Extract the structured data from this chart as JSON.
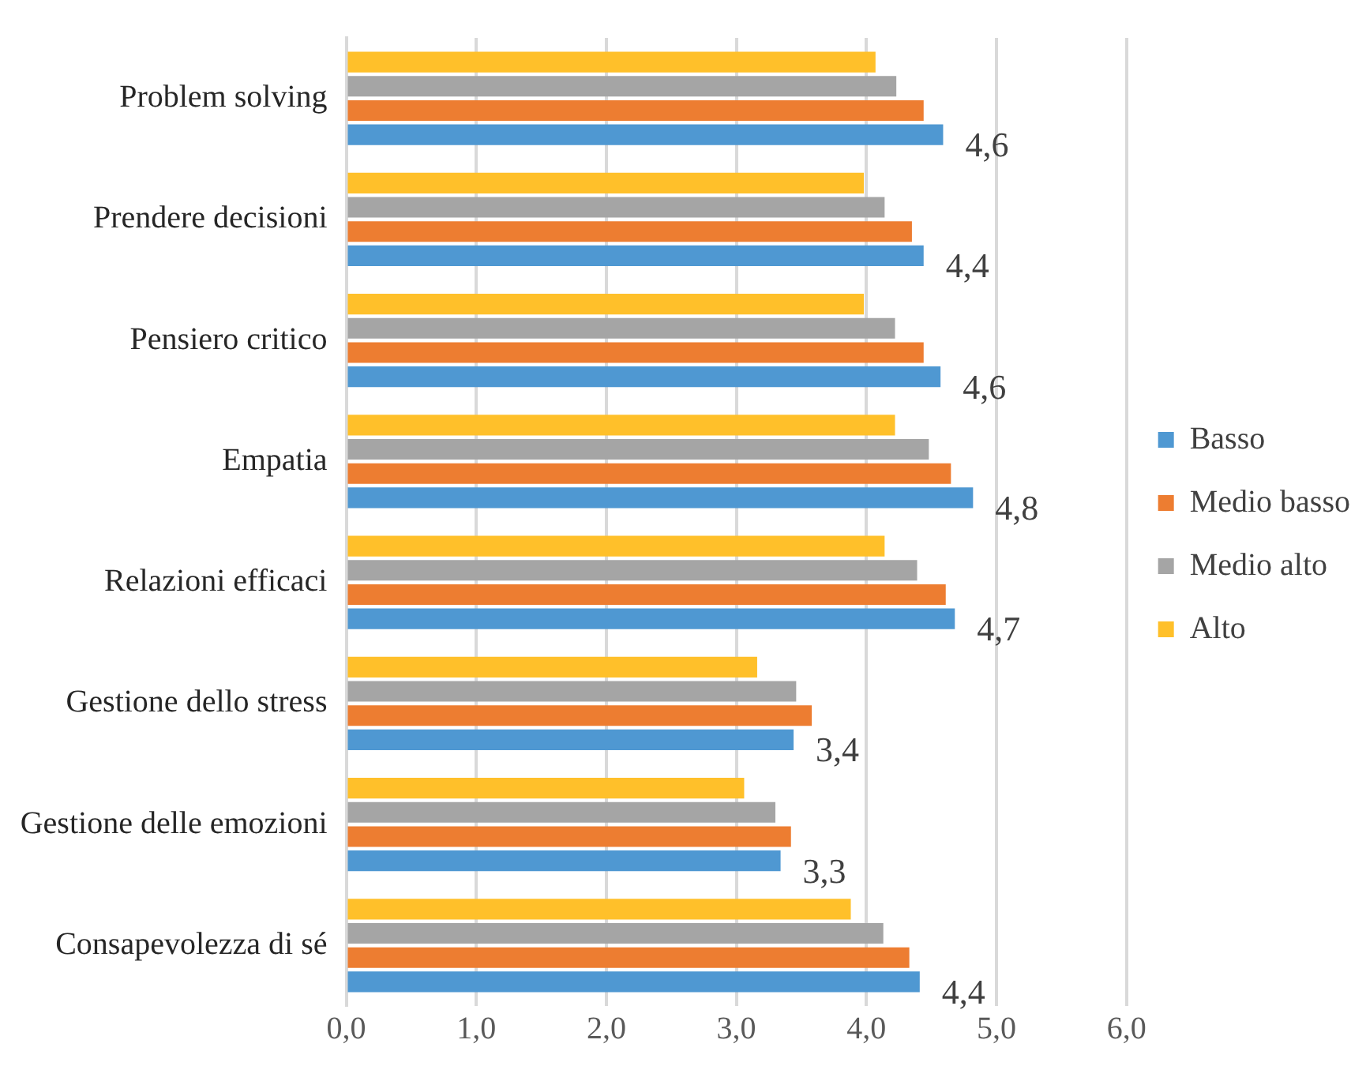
{
  "chart_data": {
    "type": "bar",
    "orientation": "horizontal",
    "categories": [
      "Problem solving",
      "Prendere decisioni",
      "Pensiero critico",
      "Empatia",
      "Relazioni efficaci",
      "Gestione dello stress",
      "Gestione delle emozioni",
      "Consapevolezza di sé"
    ],
    "series": [
      {
        "name": "Alto",
        "color": "#ffc02a",
        "values": [
          4.07,
          3.98,
          3.98,
          4.22,
          4.14,
          3.16,
          3.06,
          3.88
        ]
      },
      {
        "name": "Medio alto",
        "color": "#a5a5a5",
        "values": [
          4.23,
          4.14,
          4.22,
          4.48,
          4.39,
          3.46,
          3.3,
          4.13
        ]
      },
      {
        "name": "Medio basso",
        "color": "#ed7d31",
        "values": [
          4.44,
          4.35,
          4.44,
          4.65,
          4.61,
          3.58,
          3.42,
          4.33
        ]
      },
      {
        "name": "Basso",
        "color": "#4f98d2",
        "values": [
          4.59,
          4.44,
          4.57,
          4.82,
          4.68,
          3.44,
          3.34,
          4.41
        ],
        "value_labels": [
          "4,6",
          "4,4",
          "4,6",
          "4,8",
          "4,7",
          "3,4",
          "3,3",
          "4,4"
        ]
      }
    ],
    "xlim": [
      0,
      6
    ],
    "xticks": [
      {
        "value": 0,
        "label": "0,0"
      },
      {
        "value": 1,
        "label": "1,0"
      },
      {
        "value": 2,
        "label": "2,0"
      },
      {
        "value": 3,
        "label": "3,0"
      },
      {
        "value": 4,
        "label": "4,0"
      },
      {
        "value": 5,
        "label": "5,0"
      },
      {
        "value": 6,
        "label": "6,0"
      }
    ],
    "grid": "x",
    "legend": "right"
  }
}
